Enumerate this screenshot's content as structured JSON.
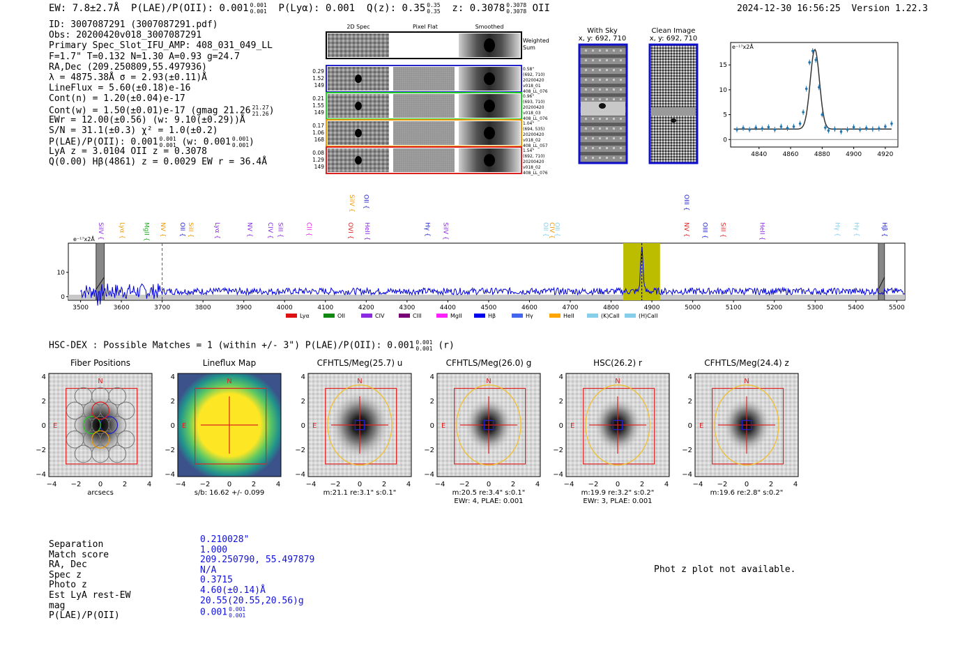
{
  "header": {
    "ew": "EW: 7.8±2.7Å",
    "plae_label": "P(LAE)/P(OII): 0.001",
    "plae_sup": "0.001",
    "plae_sub": "0.001",
    "plya": "P(Lyα): 0.001",
    "qz_label": "Q(z): 0.35",
    "qz_sup": "0.35",
    "qz_sub": "0.35",
    "z_label": "z: 0.3078",
    "z_sup": "0.3078",
    "z_sub": "0.3078",
    "z_line": "OII",
    "datetime": "2024-12-30 16:56:25",
    "version": "Version 1.22.3"
  },
  "info": {
    "id": "ID: 3007087291 (3007087291.pdf)",
    "obs": "Obs: 20200420v018_3007087291",
    "primary": "Primary Spec_Slot_IFU_AMP: 408_031_049_LL",
    "fwhm": "F=1.7\"  T=0.132  N=1.30  A=0.93  g=24.7",
    "radec": "RA,Dec (209.250809,55.497936)",
    "lambda": "λ = 4875.38Å  σ = 2.93(±0.11)Å",
    "lineflux": "LineFlux = 5.60(±0.18)e-16",
    "contn": "Cont(n) = 1.20(±0.04)e-17",
    "contw": "Cont(w) = 1.50(±0.01)e-17 (gmag 21.26",
    "contw_sup": "21.27",
    "contw_sub": "21.26",
    "contw_end": ")",
    "ewr": "EWr = 12.00(±0.56) (w: 9.10(±0.29))Å",
    "sn": "S/N = 31.1(±0.3)  χ² = 1.0(±0.2)",
    "plae": "P(LAE)/P(OII): 0.001",
    "plae_sup": "0.001",
    "plae_sub": "0.001",
    "plae_w": "(w: 0.001",
    "plae_w_sup": "0.001",
    "plae_w_sub": "0.001",
    "plae_w_end": ")",
    "lya": "LyA z = 3.0104  OII z = 0.3078",
    "q": "Q(0.00) Hβ(4861) z = 0.0029  EW r = 36.4Å"
  },
  "cutouts": {
    "col_2d": "2D Spec",
    "col_flat": "Pixel Flat",
    "col_smooth": "Smoothed",
    "weighted": "Weighted",
    "sum": "Sum",
    "fibers": [
      {
        "left": [
          "0.29",
          "1.52",
          "149"
        ],
        "right": [
          "0.58\"",
          "(692, 710)",
          "20200420",
          "v018_01",
          "408_LL_076"
        ],
        "color": "#2222cc"
      },
      {
        "left": [
          "0.21",
          "1.55",
          "149"
        ],
        "right": [
          "0.96\"",
          "(693, 710)",
          "20200420",
          "v018_03",
          "408_LL_076"
        ],
        "color": "#22cc22"
      },
      {
        "left": [
          "0.17",
          "1.06",
          "168"
        ],
        "right": [
          "1.04\"",
          "(694, 535)",
          "20200420",
          "v018_02",
          "408_LL_057"
        ],
        "color": "#ee9900"
      },
      {
        "left": [
          "0.08",
          "1.29",
          "149"
        ],
        "right": [
          "1.54\"",
          "(692, 710)",
          "20200420",
          "v018_02",
          "408_LL_076"
        ],
        "color": "#dd2222"
      }
    ],
    "with_sky_title": "With Sky",
    "with_sky_xy": "x, y: 692, 710",
    "clean_title": "Clean Image",
    "clean_xy": "x, y: 692, 710"
  },
  "chart_data": [
    {
      "type": "line",
      "id": "zoom-spectrum",
      "title": "",
      "ylabel_unit": "e⁻¹⁷x2Å",
      "xlim": [
        4822,
        4928
      ],
      "ylim": [
        -1.5,
        19.5
      ],
      "xticks": [
        4840,
        4860,
        4880,
        4900,
        4920
      ],
      "yticks": [
        0,
        5,
        10,
        15
      ],
      "x": [
        4826,
        4830,
        4834,
        4838,
        4842,
        4846,
        4850,
        4854,
        4858,
        4862,
        4866,
        4868,
        4870,
        4872,
        4874,
        4876,
        4878,
        4880,
        4882,
        4884,
        4888,
        4892,
        4896,
        4900,
        4904,
        4908,
        4912,
        4916,
        4920,
        4924
      ],
      "y": [
        2.0,
        2.3,
        2.0,
        2.4,
        2.2,
        2.5,
        2.0,
        2.6,
        2.3,
        2.6,
        3.2,
        5.5,
        10.2,
        15.5,
        17.8,
        16.0,
        10.5,
        5.0,
        2.4,
        1.8,
        2.1,
        1.6,
        2.0,
        2.5,
        2.0,
        2.3,
        2.1,
        2.2,
        2.6,
        3.2
      ],
      "model_center": 4875.38,
      "model_sigma": 2.93,
      "model_amp": 16.0,
      "model_cont": 2.1
    },
    {
      "type": "line",
      "id": "full-spectrum",
      "ylabel_unit": "e⁻¹⁷x2Å",
      "xlim": [
        3470,
        5520
      ],
      "ylim": [
        -1.5,
        22
      ],
      "xticks": [
        3500,
        3600,
        3700,
        3800,
        3900,
        4000,
        4100,
        4200,
        4300,
        4400,
        4500,
        4600,
        4700,
        4800,
        4900,
        5000,
        5100,
        5200,
        5300,
        5400,
        5500
      ],
      "yticks": [
        0,
        10
      ],
      "peak_wave": 4875.38,
      "peak_value": 20,
      "continuum_level": 2.2,
      "highlight_range": [
        4830,
        4920
      ],
      "excluded_bands": [
        [
          3538,
          3558
        ],
        [
          5455,
          5470
        ]
      ],
      "dashed_line": 3700,
      "line_labels": [
        {
          "label": "SiIV",
          "wave": 3540,
          "color": "#8a2be2",
          "row": "low"
        },
        {
          "label": "Lyα",
          "wave": 3592,
          "color": "#ee9900",
          "row": "low"
        },
        {
          "label": "MgII",
          "wave": 3652,
          "color": "#22aa22",
          "row": "low"
        },
        {
          "label": "NV",
          "wave": 3692,
          "color": "#ee9900",
          "row": "low"
        },
        {
          "label": "OII",
          "wave": 3740,
          "color": "#2222cc",
          "row": "low"
        },
        {
          "label": "SiII",
          "wave": 3760,
          "color": "#ee9900",
          "row": "low"
        },
        {
          "label": "Lyα",
          "wave": 3825,
          "color": "#8a2be2",
          "row": "low"
        },
        {
          "label": "NV",
          "wave": 3905,
          "color": "#8a2be2",
          "row": "low"
        },
        {
          "label": "CIV",
          "wave": 3955,
          "color": "#8a2be2",
          "row": "low"
        },
        {
          "label": "SiII",
          "wave": 3980,
          "color": "#8a2be2",
          "row": "low"
        },
        {
          "label": "CII",
          "wave": 4050,
          "color": "#ee22ee",
          "row": "low"
        },
        {
          "label": "OVI",
          "wave": 4152,
          "color": "#dd2222",
          "row": "low"
        },
        {
          "label": "HeII",
          "wave": 4193,
          "color": "#8a2be2",
          "row": "low"
        },
        {
          "label": "SiIV",
          "wave": 4155,
          "color": "#ee9900",
          "row": "high"
        },
        {
          "label": "OII",
          "wave": 4190,
          "color": "#2222cc",
          "row": "high"
        },
        {
          "label": "Hγ",
          "wave": 4340,
          "color": "#2222cc",
          "row": "low"
        },
        {
          "label": "SiIV",
          "wave": 4385,
          "color": "#8a2be2",
          "row": "low"
        },
        {
          "label": "OII",
          "wave": 4630,
          "color": "#87ceeb",
          "row": "low"
        },
        {
          "label": "CIV",
          "wave": 4645,
          "color": "#ee9900",
          "row": "low"
        },
        {
          "label": "OII",
          "wave": 4658,
          "color": "#87ceeb",
          "row": "low"
        },
        {
          "label": "OIII",
          "wave": 4975,
          "color": "#2222cc",
          "row": "high"
        },
        {
          "label": "NV",
          "wave": 4975,
          "color": "#dd2222",
          "row": "low"
        },
        {
          "label": "OIII",
          "wave": 5020,
          "color": "#2222cc",
          "row": "low"
        },
        {
          "label": "SiII",
          "wave": 5065,
          "color": "#dd2222",
          "row": "low"
        },
        {
          "label": "HeII",
          "wave": 5160,
          "color": "#8a2be2",
          "row": "low"
        },
        {
          "label": "Hγ",
          "wave": 5345,
          "color": "#87ceeb",
          "row": "low"
        },
        {
          "label": "Hγ",
          "wave": 5392,
          "color": "#87ceeb",
          "row": "low"
        },
        {
          "label": "Hβ",
          "wave": 5460,
          "color": "#2222cc",
          "row": "low"
        }
      ],
      "legend": [
        {
          "label": "Lyα",
          "color": "#dd1111"
        },
        {
          "label": "OII",
          "color": "#118811"
        },
        {
          "label": "CIV",
          "color": "#8a2be2"
        },
        {
          "label": "CIII",
          "color": "#770077"
        },
        {
          "label": "MgII",
          "color": "#ff22ff"
        },
        {
          "label": "Hβ",
          "color": "#0000ee"
        },
        {
          "label": "Hγ",
          "color": "#4466ee"
        },
        {
          "label": "HeII",
          "color": "#ffa500"
        },
        {
          "label": "(K)CaII",
          "color": "#87ceeb"
        },
        {
          "label": "(H)CaII",
          "color": "#87ceeb"
        }
      ]
    }
  ],
  "hsc": {
    "header": "HSC-DEX : Possible Matches = 1 (within +/- 3\")  P(LAE)/P(OII): 0.001",
    "header_sup": "0.001",
    "header_sub": "0.001",
    "header_end": "(r)",
    "panels": [
      {
        "title": "Fiber Positions",
        "caption1": "arcsecs",
        "caption2": ""
      },
      {
        "title": "Lineflux Map",
        "caption1": "s/b: 16.62 +/- 0.099",
        "caption2": ""
      },
      {
        "title": "CFHTLS/Meg(25.7) u",
        "caption1": "m:21.1  re:3.1\"  s:0.1\"",
        "caption2": ""
      },
      {
        "title": "CFHTLS/Meg(26.0) g",
        "caption1": "m:20.5  re:3.4\"  s:0.1\"",
        "caption2": "EWr: 4, PLAE: 0.001"
      },
      {
        "title": "HSC(26.2) r",
        "caption1": "m:19.9  re:3.2\"  s:0.2\"",
        "caption2": "EWr: 3, PLAE: 0.001"
      },
      {
        "title": "CFHTLS/Meg(24.4) z",
        "caption1": "m:19.6  re:2.8\"  s:0.2\"",
        "caption2": ""
      }
    ],
    "axis_ticks": [
      "4",
      "2",
      "0",
      "−2",
      "−4"
    ],
    "x_ticks": [
      "−4",
      "−2",
      "0",
      "2",
      "4"
    ],
    "north": "N",
    "east": "E"
  },
  "match_table": {
    "labels": [
      "Separation",
      "Match score",
      "RA, Dec",
      "Spec z",
      "Photo z",
      "Est LyA rest-EW",
      "mag",
      "P(LAE)/P(OII)"
    ],
    "values": [
      "0.210028\"",
      "1.000",
      "209.250790, 55.497879",
      "N/A",
      "0.3715",
      "4.60(±0.14)Å",
      "20.55(20.55,20.56)g",
      "0.001"
    ],
    "plae_sup": "0.001",
    "plae_sub": "0.001"
  },
  "photz": "Phot z plot not available."
}
